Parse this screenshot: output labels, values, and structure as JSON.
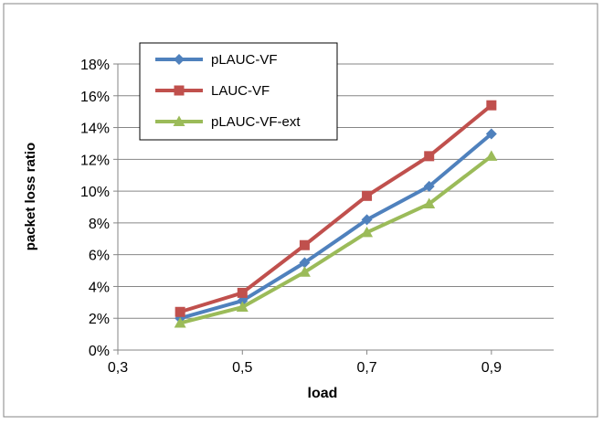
{
  "chart_data": {
    "type": "line",
    "title": "",
    "xlabel": "load",
    "ylabel": "packet loss ratio",
    "x": [
      0.4,
      0.5,
      0.6,
      0.7,
      0.8,
      0.9
    ],
    "xlim": [
      0.3,
      1.0
    ],
    "xticks": [
      0.3,
      0.5,
      0.7,
      0.9
    ],
    "xtick_labels": [
      "0,3",
      "0,5",
      "0,7",
      "0,9"
    ],
    "ylim": [
      0,
      0.18
    ],
    "yticks": [
      0,
      0.02,
      0.04,
      0.06,
      0.08,
      0.1,
      0.12,
      0.14,
      0.16,
      0.18
    ],
    "ytick_labels": [
      "0%",
      "2%",
      "4%",
      "6%",
      "8%",
      "10%",
      "12%",
      "14%",
      "16%",
      "18%"
    ],
    "grid": "horizontal",
    "legend_position": "top-left",
    "series": [
      {
        "name": "pLAUC-VF",
        "color": "#4F81BD",
        "marker": "diamond",
        "values": [
          0.02,
          0.031,
          0.055,
          0.082,
          0.103,
          0.136
        ]
      },
      {
        "name": "LAUC-VF",
        "color": "#C0504D",
        "marker": "square",
        "values": [
          0.024,
          0.036,
          0.066,
          0.097,
          0.122,
          0.154
        ]
      },
      {
        "name": "pLAUC-VF-ext",
        "color": "#9BBB59",
        "marker": "triangle",
        "values": [
          0.017,
          0.027,
          0.049,
          0.074,
          0.092,
          0.122
        ]
      }
    ]
  }
}
